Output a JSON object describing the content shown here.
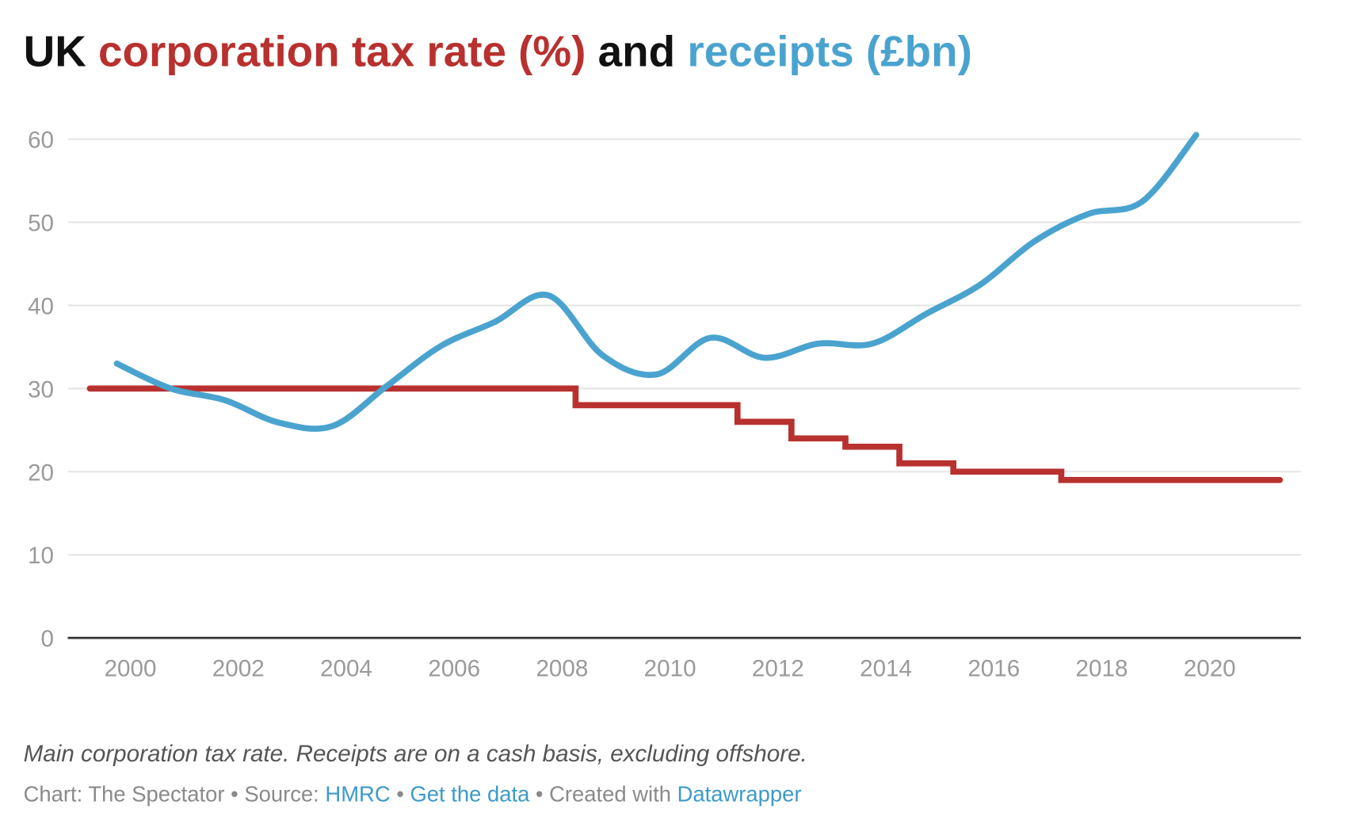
{
  "colors": {
    "rate": "#b8312f",
    "receipts": "#4aa3cf",
    "title": "#111111"
  },
  "chart_data": {
    "type": "line",
    "title": {
      "part1": "UK ",
      "part2": "corporation tax rate (%)",
      "part3": " and ",
      "part4": "receipts (£bn)"
    },
    "xlabel": "",
    "ylabel": "",
    "xlim": [
      1998.8,
      2021.7
    ],
    "ylim": [
      0,
      60
    ],
    "grid": true,
    "y_ticks": [
      "0",
      "10",
      "20",
      "30",
      "40",
      "50",
      "60"
    ],
    "x_ticks": [
      "2000",
      "2002",
      "2004",
      "2006",
      "2008",
      "2010",
      "2012",
      "2014",
      "2016",
      "2018",
      "2020"
    ],
    "series": [
      {
        "name": "corporation tax rate (%)",
        "kind": "step",
        "x": [
          1999.25,
          2008.25,
          2011.25,
          2012.25,
          2013.25,
          2014.25,
          2015.25,
          2017.25,
          2021.3
        ],
        "values": [
          30,
          28,
          26,
          24,
          23,
          21,
          20,
          19,
          19
        ]
      },
      {
        "name": "receipts (£bn)",
        "kind": "line",
        "x": [
          1999.75,
          2000.75,
          2001.75,
          2002.75,
          2003.75,
          2004.75,
          2005.75,
          2006.75,
          2007.75,
          2008.75,
          2009.75,
          2010.75,
          2011.75,
          2012.75,
          2013.75,
          2014.75,
          2015.75,
          2016.75,
          2017.75,
          2018.75,
          2019.75
        ],
        "values": [
          33.0,
          30.0,
          28.6,
          25.9,
          25.5,
          30.3,
          35.1,
          38.0,
          41.2,
          34.0,
          31.7,
          36.1,
          33.7,
          35.4,
          35.4,
          39.0,
          42.5,
          47.7,
          51.0,
          52.5,
          60.5
        ]
      }
    ],
    "notes": "Main corporation tax rate. Receipts are on a cash basis, excluding offshore."
  },
  "footer": {
    "chart_by": "Chart: The Spectator",
    "sep": " • ",
    "source_label": "Source: ",
    "source_link": "HMRC",
    "get_data": "Get the data",
    "created_with": "Created with ",
    "tool_link": "Datawrapper"
  }
}
